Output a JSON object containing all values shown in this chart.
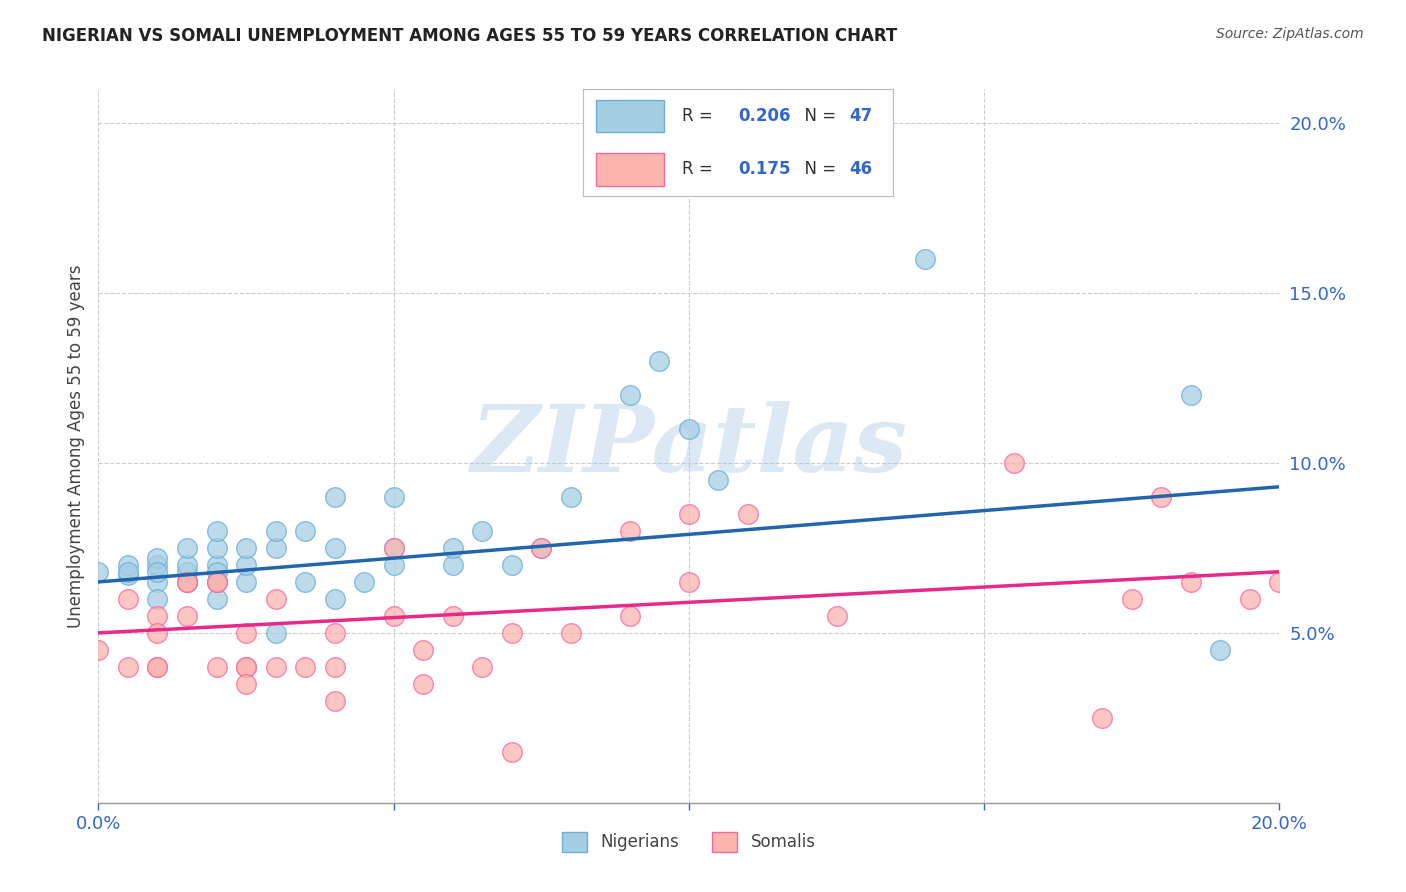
{
  "title": "NIGERIAN VS SOMALI UNEMPLOYMENT AMONG AGES 55 TO 59 YEARS CORRELATION CHART",
  "source": "Source: ZipAtlas.com",
  "ylabel": "Unemployment Among Ages 55 to 59 years",
  "xlim": [
    0.0,
    0.2
  ],
  "ylim": [
    0.0,
    0.21
  ],
  "xticks": [
    0.0,
    0.05,
    0.1,
    0.15,
    0.2
  ],
  "yticks": [
    0.0,
    0.05,
    0.1,
    0.15,
    0.2
  ],
  "xtick_labels": [
    "0.0%",
    "",
    "",
    "",
    ""
  ],
  "ytick_labels": [
    "",
    "5.0%",
    "10.0%",
    "15.0%",
    "20.0%"
  ],
  "nigerian_color": "#a6cee3",
  "nigerian_edge_color": "#6baed6",
  "somali_color": "#fbb4ae",
  "somali_edge_color": "#f768a1",
  "trend_nig_color": "#2166ac",
  "trend_som_color": "#e7298a",
  "nigerian_R": "0.206",
  "nigerian_N": "47",
  "somali_R": "0.175",
  "somali_N": "46",
  "nigerian_x": [
    0.0,
    0.005,
    0.005,
    0.005,
    0.01,
    0.01,
    0.01,
    0.01,
    0.01,
    0.015,
    0.015,
    0.015,
    0.015,
    0.02,
    0.02,
    0.02,
    0.02,
    0.02,
    0.02,
    0.025,
    0.025,
    0.025,
    0.03,
    0.03,
    0.03,
    0.035,
    0.035,
    0.04,
    0.04,
    0.04,
    0.045,
    0.05,
    0.05,
    0.05,
    0.06,
    0.06,
    0.065,
    0.07,
    0.075,
    0.08,
    0.09,
    0.095,
    0.1,
    0.105,
    0.14,
    0.185,
    0.19
  ],
  "nigerian_y": [
    0.068,
    0.067,
    0.07,
    0.068,
    0.065,
    0.07,
    0.072,
    0.068,
    0.06,
    0.065,
    0.068,
    0.07,
    0.075,
    0.06,
    0.07,
    0.068,
    0.065,
    0.075,
    0.08,
    0.065,
    0.07,
    0.075,
    0.05,
    0.075,
    0.08,
    0.065,
    0.08,
    0.06,
    0.075,
    0.09,
    0.065,
    0.07,
    0.075,
    0.09,
    0.07,
    0.075,
    0.08,
    0.07,
    0.075,
    0.09,
    0.12,
    0.13,
    0.11,
    0.095,
    0.16,
    0.12,
    0.045
  ],
  "somali_x": [
    0.0,
    0.005,
    0.005,
    0.01,
    0.01,
    0.01,
    0.01,
    0.015,
    0.015,
    0.015,
    0.02,
    0.02,
    0.02,
    0.025,
    0.025,
    0.025,
    0.025,
    0.03,
    0.03,
    0.035,
    0.04,
    0.04,
    0.04,
    0.05,
    0.05,
    0.055,
    0.055,
    0.06,
    0.065,
    0.07,
    0.07,
    0.075,
    0.08,
    0.09,
    0.09,
    0.1,
    0.1,
    0.11,
    0.125,
    0.155,
    0.17,
    0.175,
    0.18,
    0.185,
    0.195,
    0.2
  ],
  "somali_y": [
    0.045,
    0.04,
    0.06,
    0.04,
    0.055,
    0.05,
    0.04,
    0.065,
    0.065,
    0.055,
    0.065,
    0.065,
    0.04,
    0.05,
    0.04,
    0.04,
    0.035,
    0.06,
    0.04,
    0.04,
    0.04,
    0.05,
    0.03,
    0.055,
    0.075,
    0.045,
    0.035,
    0.055,
    0.04,
    0.05,
    0.015,
    0.075,
    0.05,
    0.055,
    0.08,
    0.085,
    0.065,
    0.085,
    0.055,
    0.1,
    0.025,
    0.06,
    0.09,
    0.065,
    0.06,
    0.065
  ],
  "background_color": "#ffffff",
  "grid_color": "#cccccc",
  "watermark_text": "ZIPatlas",
  "nigerian_line_start_x": 0.0,
  "nigerian_line_end_x": 0.2,
  "nigerian_line_start_y": 0.065,
  "nigerian_line_end_y": 0.093,
  "somali_line_start_x": 0.0,
  "somali_line_end_x": 0.2,
  "somali_line_start_y": 0.05,
  "somali_line_end_y": 0.068
}
